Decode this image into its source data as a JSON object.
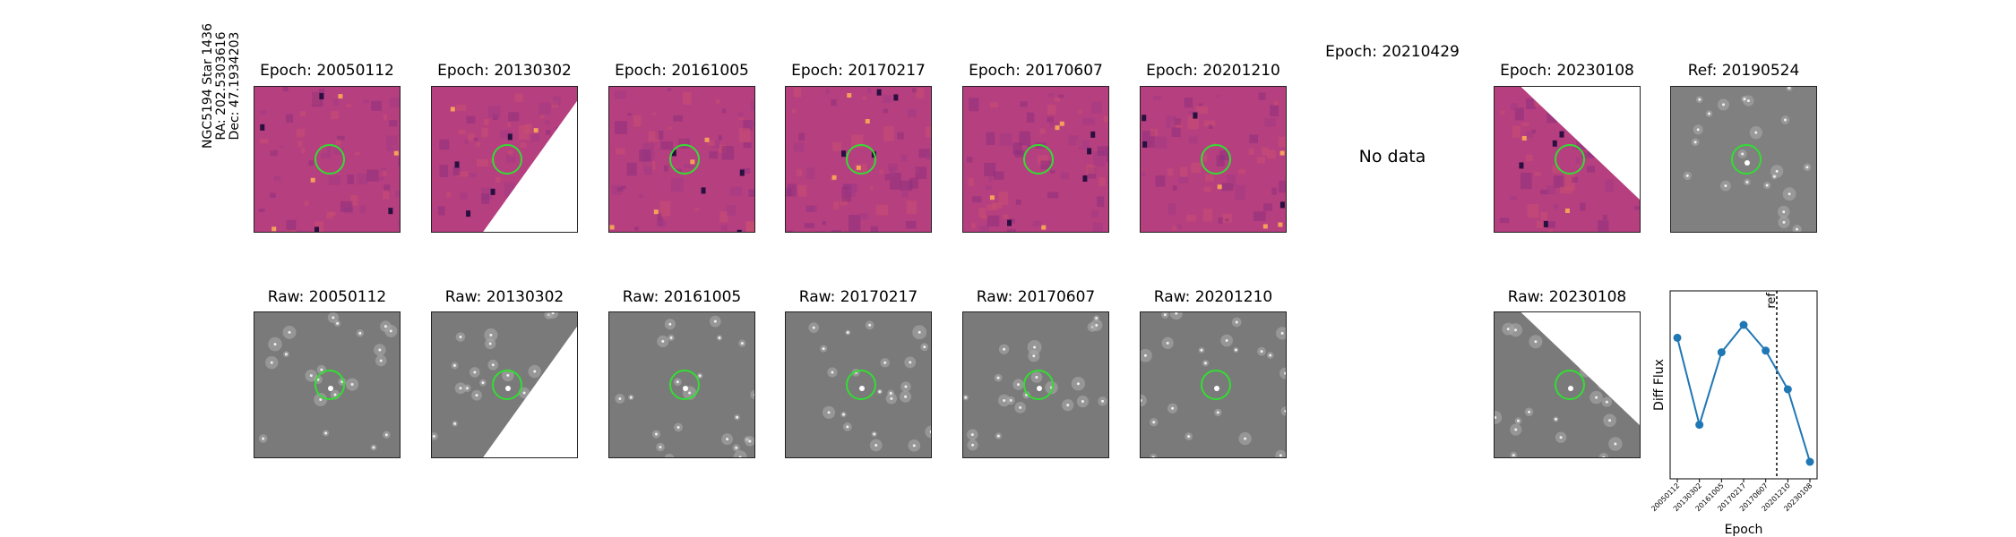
{
  "star_label": [
    "NGC5194 Star 1436",
    "RA: 202.5303616",
    "Dec: 47.1934203"
  ],
  "diff_row": [
    {
      "title": "Epoch: 20050112",
      "kind": "diff",
      "coverage": "full"
    },
    {
      "title": "Epoch: 20130302",
      "kind": "diff",
      "coverage": "lower-right-missing"
    },
    {
      "title": "Epoch: 20161005",
      "kind": "diff",
      "coverage": "full"
    },
    {
      "title": "Epoch: 20170217",
      "kind": "diff",
      "coverage": "full"
    },
    {
      "title": "Epoch: 20170607",
      "kind": "diff",
      "coverage": "full"
    },
    {
      "title": "Epoch: 20201210",
      "kind": "diff",
      "coverage": "full"
    },
    {
      "title": "Epoch: 20210429",
      "kind": "nodata",
      "text": "No data"
    },
    {
      "title": "Epoch: 20230108",
      "kind": "diff",
      "coverage": "upper-right-missing"
    },
    {
      "title": "Ref: 20190524",
      "kind": "ref",
      "coverage": "full"
    }
  ],
  "raw_row": [
    {
      "title": "Raw: 20050112",
      "coverage": "full"
    },
    {
      "title": "Raw: 20130302",
      "coverage": "lower-right-missing"
    },
    {
      "title": "Raw: 20161005",
      "coverage": "full"
    },
    {
      "title": "Raw: 20170217",
      "coverage": "full"
    },
    {
      "title": "Raw: 20170607",
      "coverage": "full"
    },
    {
      "title": "Raw: 20201210",
      "coverage": "full"
    },
    {
      "title": "Raw: 20230108",
      "coverage": "upper-right-missing"
    }
  ],
  "colors": {
    "diff_bg": "#b63f7f",
    "raw_bg": "#7a7a7a",
    "circle": "#33dd33",
    "line": "#1f77b4"
  },
  "chart_data": {
    "type": "line",
    "x": [
      "20050112",
      "20130302",
      "20161005",
      "20170217",
      "20170607",
      "20201210",
      "20230108"
    ],
    "values": [
      0.82,
      0.28,
      0.73,
      0.9,
      0.74,
      0.5,
      0.05
    ],
    "ylabel": "Diff Flux",
    "xlabel": "Epoch",
    "ref_marker": {
      "after_index": 4.5,
      "label": "ref"
    },
    "y_ticks": "none"
  }
}
